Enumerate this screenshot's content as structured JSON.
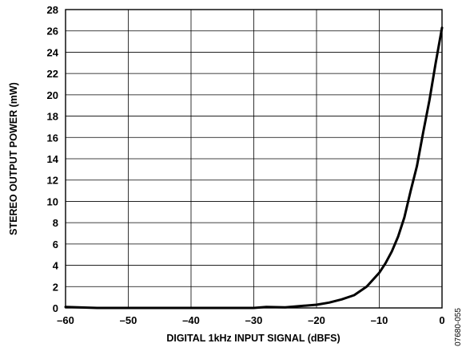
{
  "chart_data": {
    "type": "line",
    "title": "",
    "xlabel": "DIGITAL 1kHz INPUT SIGNAL (dBFS)",
    "ylabel": "STEREO OUTPUT POWER (mW)",
    "xlim": [
      -60,
      0
    ],
    "ylim": [
      0,
      28
    ],
    "x_ticks": [
      "–60",
      "–50",
      "–40",
      "–30",
      "–20",
      "–10",
      "0"
    ],
    "y_ticks": [
      "0",
      "2",
      "4",
      "6",
      "8",
      "10",
      "12",
      "14",
      "16",
      "18",
      "20",
      "22",
      "24",
      "26",
      "28"
    ],
    "grid": true,
    "series": [
      {
        "x": [
          -60,
          -55,
          -50,
          -45,
          -40,
          -35,
          -30,
          -28,
          -25,
          -22,
          -20,
          -18,
          -16,
          -14,
          -12,
          -10,
          -9,
          -8,
          -7,
          -6,
          -5,
          -4,
          -3,
          -2,
          -1,
          0
        ],
        "y": [
          0.1,
          0.0,
          0.0,
          0.0,
          0.0,
          0.0,
          0.0,
          0.1,
          0.05,
          0.2,
          0.3,
          0.5,
          0.8,
          1.2,
          2.0,
          3.3,
          4.2,
          5.3,
          6.7,
          8.5,
          11.0,
          13.3,
          16.5,
          19.5,
          23.0,
          26.3
        ]
      }
    ],
    "figure_code": "07680-055"
  }
}
